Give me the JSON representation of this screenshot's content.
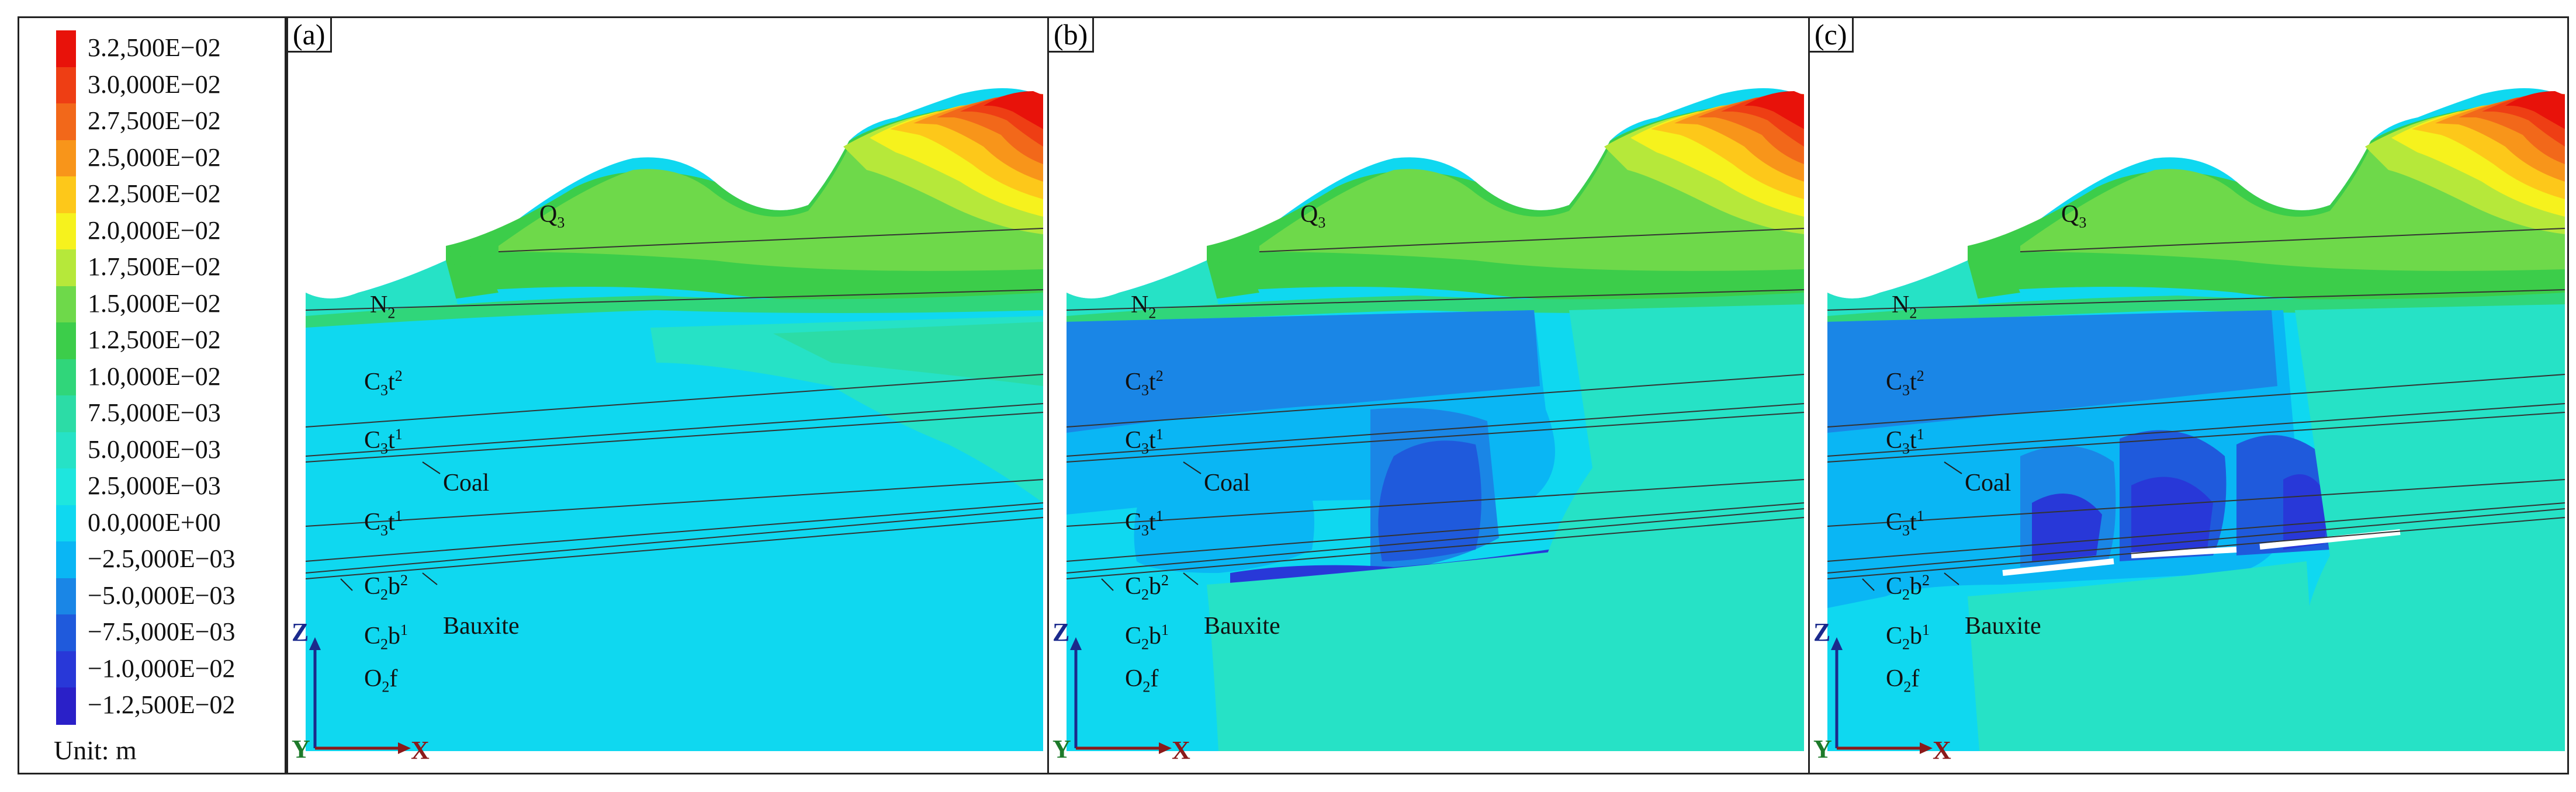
{
  "legend": {
    "unit_label": "Unit: m",
    "entries": [
      {
        "label": "3.2,500E−02",
        "color": "#e8120a"
      },
      {
        "label": "3.0,000E−02",
        "color": "#ee3e14"
      },
      {
        "label": "2.7,500E−02",
        "color": "#f2681a"
      },
      {
        "label": "2.5,000E−02",
        "color": "#f8951a"
      },
      {
        "label": "2.2,500E−02",
        "color": "#fdc81a"
      },
      {
        "label": "2.0,000E−02",
        "color": "#f6f21d"
      },
      {
        "label": "1.7,500E−02",
        "color": "#b6e83a"
      },
      {
        "label": "1.5,000E−02",
        "color": "#6ed94a"
      },
      {
        "label": "1.2,500E−02",
        "color": "#3ccd4a"
      },
      {
        "label": "1.0,000E−02",
        "color": "#30d67a"
      },
      {
        "label": "7.5,000E−03",
        "color": "#2cdca6"
      },
      {
        "label": "5.0,000E−03",
        "color": "#26e2c6"
      },
      {
        "label": "2.5,000E−03",
        "color": "#1ee6de"
      },
      {
        "label": "0.0,000E+00",
        "color": "#0fd8f0"
      },
      {
        "label": "−2.5,000E−03",
        "color": "#0ab6f4"
      },
      {
        "label": "−5.0,000E−03",
        "color": "#1a86e6"
      },
      {
        "label": "−7.5,000E−03",
        "color": "#1f5adc"
      },
      {
        "label": "−1.0,000E−02",
        "color": "#2838d8"
      },
      {
        "label": "−1.2,500E−02",
        "color": "#2a20c8"
      }
    ]
  },
  "panels": [
    {
      "tag": "(a)"
    },
    {
      "tag": "(b)"
    },
    {
      "tag": "(c)"
    }
  ],
  "strata": {
    "q3": "Q3",
    "n2": "N2",
    "c3t2": "C3t2",
    "c3t1a": "C3t1",
    "coal": "Coal",
    "c3t1b": "C3t1",
    "c2b2": "C2b2",
    "bauxite": "Bauxite",
    "c2b1": "C2b1",
    "o2f": "O2f"
  },
  "axes": {
    "z": "Z",
    "y": "Y",
    "x": "X"
  },
  "colors": {
    "frame": "#222222",
    "z_axis": "#1b2a8c",
    "x_axis": "#8b1a1a",
    "y_axis": "#1d7a2a"
  }
}
